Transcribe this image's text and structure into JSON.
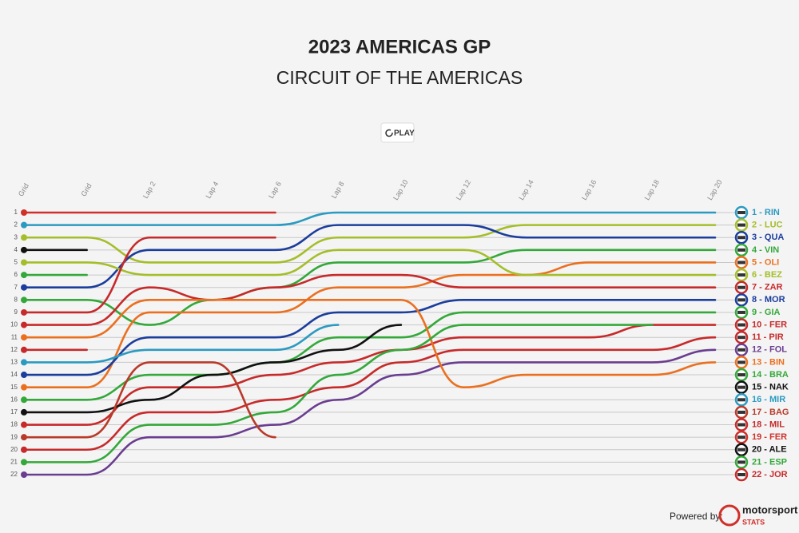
{
  "chart_data": {
    "type": "line",
    "title": "2023 AMERICAS GP",
    "subtitle": "CIRCUIT OF THE AMERICAS",
    "categories": [
      "Grid",
      "Grid",
      "Lap 2",
      "Lap 4",
      "Lap 6",
      "Lap 8",
      "Lap 10",
      "Lap 12",
      "Lap 14",
      "Lap 16",
      "Lap 18",
      "Lap 20"
    ],
    "ylim": [
      22,
      1
    ],
    "yticks": [
      1,
      2,
      3,
      4,
      5,
      6,
      7,
      8,
      9,
      10,
      11,
      12,
      13,
      14,
      15,
      16,
      17,
      18,
      19,
      20,
      21,
      22
    ],
    "grid": true,
    "series": [
      {
        "name": "1 - RIN",
        "color": "#2b9ac0",
        "values": [
          2,
          2,
          2,
          2,
          2,
          1,
          1,
          1,
          1,
          1,
          1,
          1
        ]
      },
      {
        "name": "2 - LUC",
        "color": "#a4be2a",
        "values": [
          3,
          3,
          5,
          5,
          5,
          3,
          3,
          3,
          2,
          2,
          2,
          2
        ]
      },
      {
        "name": "3 - QUA",
        "color": "#1b3d9c",
        "values": [
          7,
          7,
          4,
          4,
          4,
          2,
          2,
          2,
          3,
          3,
          3,
          3
        ]
      },
      {
        "name": "4 - VIN",
        "color": "#34a83a",
        "values": [
          8,
          8,
          10,
          8,
          7,
          5,
          5,
          5,
          4,
          4,
          4,
          4
        ]
      },
      {
        "name": "5 - OLI",
        "color": "#ea7020",
        "values": [
          15,
          15,
          9,
          9,
          9,
          7,
          7,
          6,
          6,
          5,
          5,
          5
        ]
      },
      {
        "name": "6 - BEZ",
        "color": "#a4be2a",
        "values": [
          5,
          5,
          6,
          6,
          6,
          4,
          4,
          4,
          6,
          6,
          6,
          6
        ]
      },
      {
        "name": "7 - ZAR",
        "color": "#c62a2a",
        "values": [
          10,
          10,
          7,
          8,
          7,
          6,
          6,
          7,
          7,
          7,
          7,
          7
        ]
      },
      {
        "name": "8 - MOR",
        "color": "#1b3d9c",
        "values": [
          14,
          14,
          11,
          11,
          11,
          9,
          9,
          8,
          8,
          8,
          8,
          8
        ]
      },
      {
        "name": "9 - GIA",
        "color": "#34a83a",
        "values": [
          16,
          16,
          14,
          14,
          13,
          11,
          11,
          9,
          9,
          9,
          9,
          9
        ]
      },
      {
        "name": "10 - FER",
        "color": "#c62a2a",
        "values": [
          18,
          18,
          15,
          15,
          14,
          13,
          12,
          11,
          11,
          11,
          10,
          10
        ]
      },
      {
        "name": "11 - PIR",
        "color": "#c62a2a",
        "values": [
          20,
          20,
          17,
          17,
          16,
          15,
          13,
          12,
          12,
          12,
          12,
          11
        ]
      },
      {
        "name": "12 - FOL",
        "color": "#6a3d8f",
        "values": [
          22,
          22,
          19,
          19,
          18,
          16,
          14,
          13,
          13,
          13,
          13,
          12
        ]
      },
      {
        "name": "13 - BIN",
        "color": "#ea7020",
        "values": [
          11,
          11,
          8,
          8,
          8,
          8,
          8,
          15,
          14,
          14,
          14,
          13
        ]
      },
      {
        "name": "14 - BRA",
        "color": "#34a83a",
        "values": [
          21,
          21,
          18,
          18,
          17,
          14,
          12,
          10,
          10,
          10,
          10,
          null
        ]
      },
      {
        "name": "15 - NAK",
        "color": "#111111",
        "values": [
          17,
          17,
          16,
          14,
          13,
          12,
          10,
          null,
          null,
          null,
          null,
          null
        ]
      },
      {
        "name": "16 - MIR",
        "color": "#2b9ac0",
        "values": [
          13,
          13,
          12,
          12,
          12,
          10,
          null,
          null,
          null,
          null,
          null,
          null
        ]
      },
      {
        "name": "17 - BAG",
        "color": "#b83a2a",
        "values": [
          19,
          19,
          13,
          13,
          19,
          null,
          null,
          null,
          null,
          null,
          null,
          null
        ]
      },
      {
        "name": "18 - MIL",
        "color": "#c62a2a",
        "values": [
          12,
          12,
          null,
          null,
          null,
          null,
          null,
          null,
          null,
          null,
          null,
          null
        ]
      },
      {
        "name": "19 - FER",
        "color": "#d0302a",
        "values": [
          1,
          1,
          1,
          1,
          1,
          null,
          null,
          null,
          null,
          null,
          null,
          null
        ]
      },
      {
        "name": "20 - ALE",
        "color": "#111111",
        "values": [
          4,
          4,
          null,
          null,
          null,
          null,
          null,
          null,
          null,
          null,
          null,
          null
        ]
      },
      {
        "name": "21 - ESP",
        "color": "#34a83a",
        "values": [
          6,
          6,
          null,
          null,
          null,
          null,
          null,
          null,
          null,
          null,
          null,
          null
        ]
      },
      {
        "name": "22 - JOR",
        "color": "#c62a2a",
        "values": [
          9,
          9,
          3,
          3,
          3,
          null,
          null,
          null,
          null,
          null,
          null,
          null
        ]
      }
    ]
  },
  "controls": {
    "play": "PLAY"
  },
  "footer": {
    "powered_by": "Powered by:",
    "brand": "motorsport",
    "brand_sub": "STATS"
  }
}
